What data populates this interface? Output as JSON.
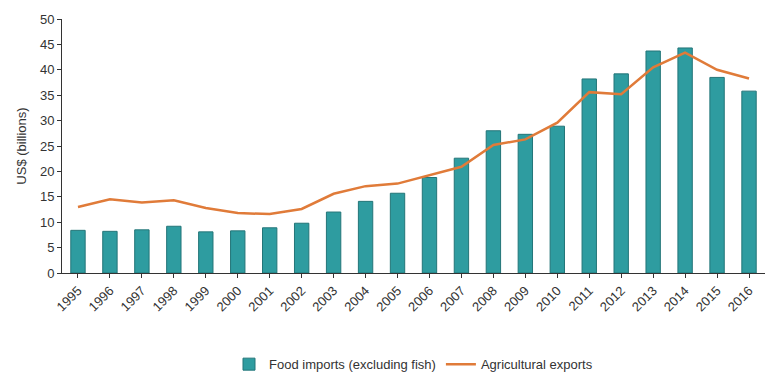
{
  "chart_data": {
    "type": "bar",
    "categories": [
      "1995",
      "1996",
      "1997",
      "1998",
      "1999",
      "2000",
      "2001",
      "2002",
      "2003",
      "2004",
      "2005",
      "2006",
      "2007",
      "2008",
      "2009",
      "2010",
      "2011",
      "2012",
      "2013",
      "2014",
      "2015",
      "2016"
    ],
    "series": [
      {
        "name": "Food imports (excluding fish)",
        "type": "bar",
        "color": "#2e9ca0",
        "values": [
          8.4,
          8.2,
          8.5,
          9.2,
          8.1,
          8.3,
          8.9,
          9.8,
          12.0,
          14.1,
          15.7,
          18.8,
          22.6,
          28.0,
          27.3,
          28.9,
          38.2,
          39.2,
          43.7,
          44.3,
          38.5,
          35.8
        ]
      },
      {
        "name": "Agricultural exports",
        "type": "line",
        "color": "#e07b39",
        "values": [
          13.0,
          14.5,
          13.9,
          14.3,
          12.8,
          11.8,
          11.6,
          12.6,
          15.6,
          17.1,
          17.6,
          19.3,
          20.9,
          25.2,
          26.3,
          29.6,
          35.6,
          35.2,
          40.5,
          43.4,
          40.0,
          38.3
        ]
      }
    ],
    "y_label": "US$ (billions)",
    "ylim": [
      0,
      50
    ],
    "yticks": [
      0,
      5,
      10,
      15,
      20,
      25,
      30,
      35,
      40,
      45,
      50
    ],
    "grid": false,
    "legend": "bottom"
  }
}
